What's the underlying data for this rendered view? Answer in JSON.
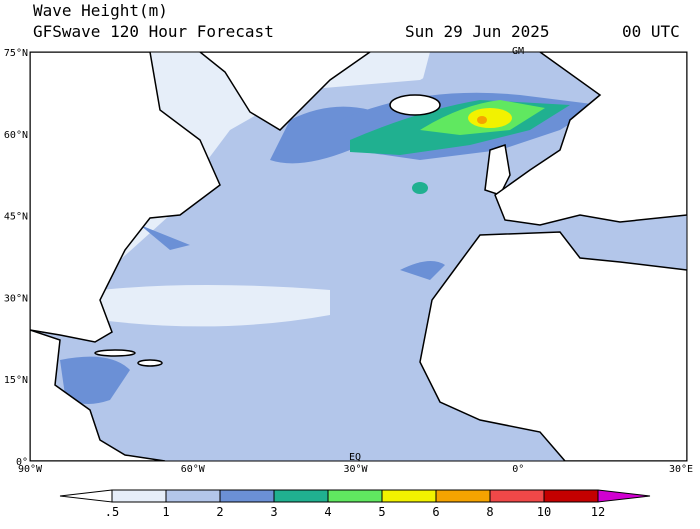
{
  "header": {
    "title": "Wave Height(m)",
    "subtitle": "GFSwave 120 Hour Forecast",
    "date": "Sun 29 Jun 2025",
    "time": "00 UTC"
  },
  "map": {
    "lat_labels": [
      "75°N",
      "60°N",
      "45°N",
      "30°N",
      "15°N",
      "0°"
    ],
    "lon_labels": [
      "90°W",
      "60°W",
      "30°W",
      "0°",
      "30°E"
    ],
    "markers": [
      "GM",
      "EQ"
    ]
  },
  "colorbar": {
    "levels": [
      {
        "value": 0.5,
        "label": ".5"
      },
      1,
      2,
      3,
      4,
      5,
      6,
      8,
      10,
      12
    ],
    "colors": [
      "#ffffff",
      "#e6eef9",
      "#b3c6ea",
      "#6b90d6",
      "#20b090",
      "#60e860",
      "#f2f200",
      "#f5a300",
      "#f04848",
      "#c40000",
      "#d000d0"
    ]
  }
}
